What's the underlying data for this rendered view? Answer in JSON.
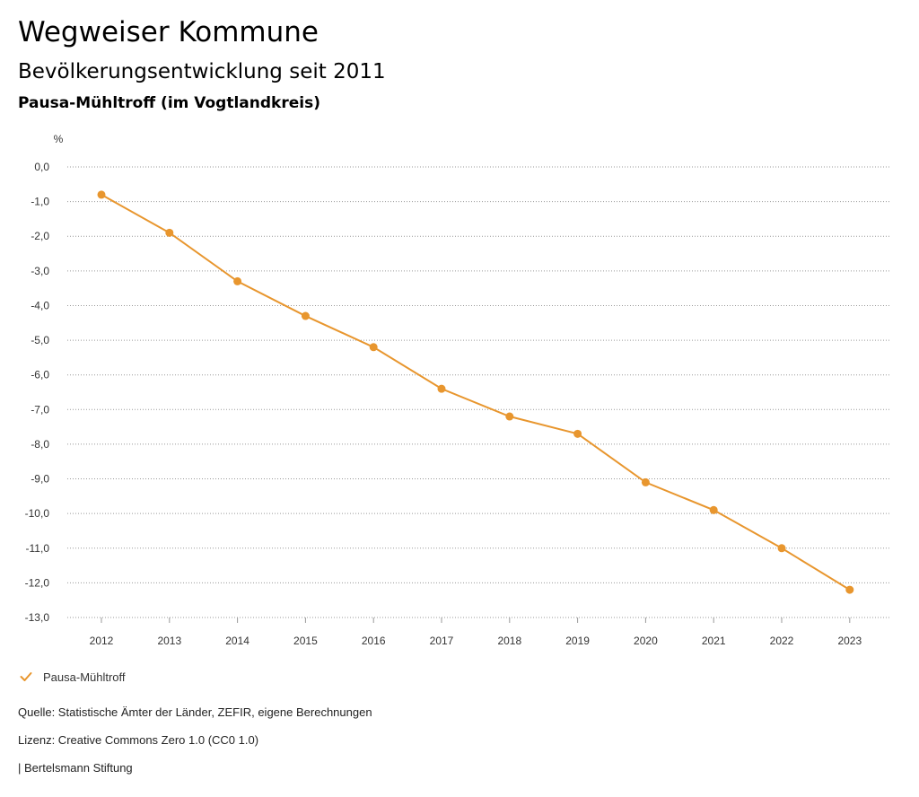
{
  "header": {
    "title": "Wegweiser Kommune",
    "subtitle": "Bevölkerungsentwicklung seit 2011",
    "region": "Pausa-Mühltroff (im Vogtlandkreis)"
  },
  "chart_data": {
    "type": "line",
    "ylabel": "%",
    "xlabel": "",
    "x": [
      "2012",
      "2013",
      "2014",
      "2015",
      "2016",
      "2017",
      "2018",
      "2019",
      "2020",
      "2021",
      "2022",
      "2023"
    ],
    "series": [
      {
        "name": "Pausa-Mühltroff",
        "color": "#e8962e",
        "values": [
          -0.8,
          -1.9,
          -3.3,
          -4.3,
          -5.2,
          -6.4,
          -7.2,
          -7.7,
          -9.1,
          -9.9,
          -11.0,
          -12.2
        ]
      }
    ],
    "ylim": [
      -13,
      0
    ],
    "yticks": [
      "0,0",
      "-1,0",
      "-2,0",
      "-3,0",
      "-4,0",
      "-5,0",
      "-6,0",
      "-7,0",
      "-8,0",
      "-9,0",
      "-10,0",
      "-11,0",
      "-12,0",
      "-13,0"
    ],
    "grid": true,
    "legend_placement": "bottom-left"
  },
  "legend": {
    "label": "Pausa-Mühltroff",
    "icon": "check-icon"
  },
  "footer": {
    "source": "Quelle: Statistische Ämter der Länder, ZEFIR, eigene Berechnungen",
    "license": "Lizenz: Creative Commons Zero 1.0 (CC0 1.0)",
    "publisher": "| Bertelsmann Stiftung"
  }
}
